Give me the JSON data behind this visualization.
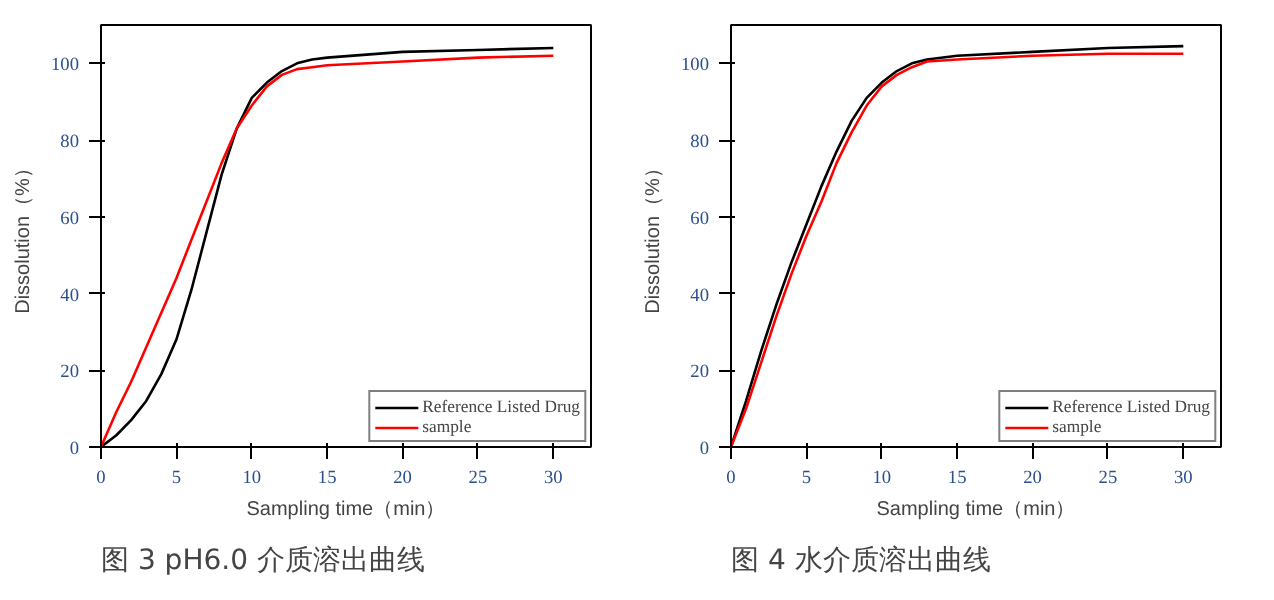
{
  "chart_data": [
    {
      "type": "line",
      "xlabel": "Sampling time（min）",
      "ylabel": "Dissolution（%）",
      "xlim": [
        0,
        32.5
      ],
      "ylim": [
        0,
        110
      ],
      "xticks": [
        0,
        5,
        10,
        15,
        20,
        25,
        30
      ],
      "yticks": [
        0,
        20,
        40,
        60,
        80,
        100
      ],
      "legend": "bottom right",
      "grid": false,
      "marker": "none",
      "line_style": "solid",
      "x": [
        0,
        1,
        2,
        3,
        4,
        5,
        6,
        7,
        8,
        9,
        10,
        11,
        12,
        13,
        14,
        15,
        20,
        25,
        30
      ],
      "series": [
        {
          "name": "Reference Listed Drug",
          "color": "#000000",
          "values": [
            0,
            3,
            7,
            12,
            19,
            28,
            41,
            56,
            71,
            83,
            91,
            95,
            98,
            100,
            101,
            101.5,
            103,
            103.5,
            104
          ]
        },
        {
          "name": "sample",
          "color": "#ff0000",
          "values": [
            0,
            9,
            17,
            26,
            35,
            44,
            54,
            64,
            74,
            83,
            89,
            94,
            97,
            98.5,
            99,
            99.5,
            100.5,
            101.5,
            102
          ]
        }
      ],
      "annotations": [
        "图 3 pH6.0 介质溶出曲线"
      ]
    },
    {
      "type": "line",
      "xlabel": "Sampling time（min）",
      "ylabel": "Dissolution（%）",
      "xlim": [
        0,
        32.5
      ],
      "ylim": [
        0,
        110
      ],
      "xticks": [
        0,
        5,
        10,
        15,
        20,
        25,
        30
      ],
      "yticks": [
        0,
        20,
        40,
        60,
        80,
        100
      ],
      "legend": "bottom right",
      "grid": false,
      "marker": "none",
      "line_style": "solid",
      "x": [
        0,
        1,
        2,
        3,
        4,
        5,
        6,
        7,
        8,
        9,
        10,
        11,
        12,
        13,
        15,
        20,
        25,
        30
      ],
      "series": [
        {
          "name": "Reference Listed Drug",
          "color": "#000000",
          "values": [
            0,
            12,
            25,
            37,
            48,
            58,
            68,
            77,
            85,
            91,
            95,
            98,
            100,
            101,
            102,
            103,
            104,
            104.5
          ]
        },
        {
          "name": "sample",
          "color": "#ff0000",
          "values": [
            0,
            10,
            22,
            34,
            45,
            55,
            64,
            74,
            82,
            89,
            94,
            97,
            99,
            100.5,
            101,
            102,
            102.5,
            102.5
          ]
        }
      ],
      "annotations": [
        "图 4 水介质溶出曲线"
      ]
    }
  ]
}
